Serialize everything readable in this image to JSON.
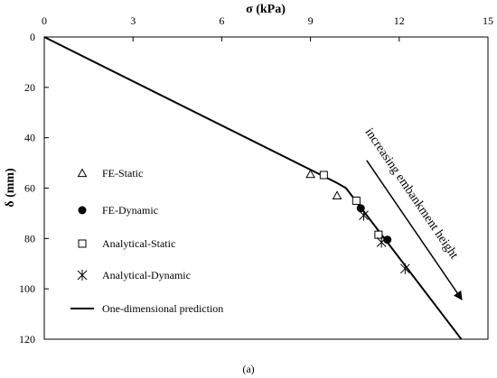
{
  "chart_data": {
    "type": "scatter",
    "xlabel": "σ (kPa)",
    "ylabel": "δ (mm)",
    "xlim": [
      0,
      15
    ],
    "ylim": [
      0,
      120
    ],
    "x_axis_position": "top",
    "y_axis_inverted": true,
    "x_ticks": [
      0,
      3,
      6,
      9,
      12,
      15
    ],
    "y_ticks": [
      0,
      20,
      40,
      60,
      80,
      100,
      120
    ],
    "grid": false,
    "legend_position": "left-inside",
    "series": [
      {
        "name": "FE-Static",
        "marker": "triangle-open",
        "points": [
          [
            9.0,
            54.5
          ],
          [
            9.9,
            63.0
          ]
        ]
      },
      {
        "name": "FE-Dynamic",
        "marker": "circle-filled",
        "points": [
          [
            10.7,
            68.0
          ],
          [
            11.6,
            80.5
          ]
        ]
      },
      {
        "name": "Analytical-Static",
        "marker": "square-open",
        "points": [
          [
            9.45,
            54.8
          ],
          [
            10.55,
            65.0
          ],
          [
            11.3,
            78.5
          ]
        ]
      },
      {
        "name": "Analytical-Dynamic",
        "marker": "asterisk",
        "points": [
          [
            10.8,
            70.8
          ],
          [
            11.4,
            81.5
          ],
          [
            12.2,
            92.0
          ]
        ]
      },
      {
        "name": "One-dimensional prediction",
        "marker": "line",
        "points": [
          [
            0,
            0
          ],
          [
            9.9,
            58.0
          ],
          [
            10.2,
            60.0
          ],
          [
            14.1,
            120.0
          ]
        ]
      }
    ],
    "annotation": {
      "text": "increasing embankment height",
      "arrow_from": [
        10.9,
        49.0
      ],
      "arrow_to": [
        14.1,
        104.0
      ]
    }
  },
  "caption": "(a)"
}
